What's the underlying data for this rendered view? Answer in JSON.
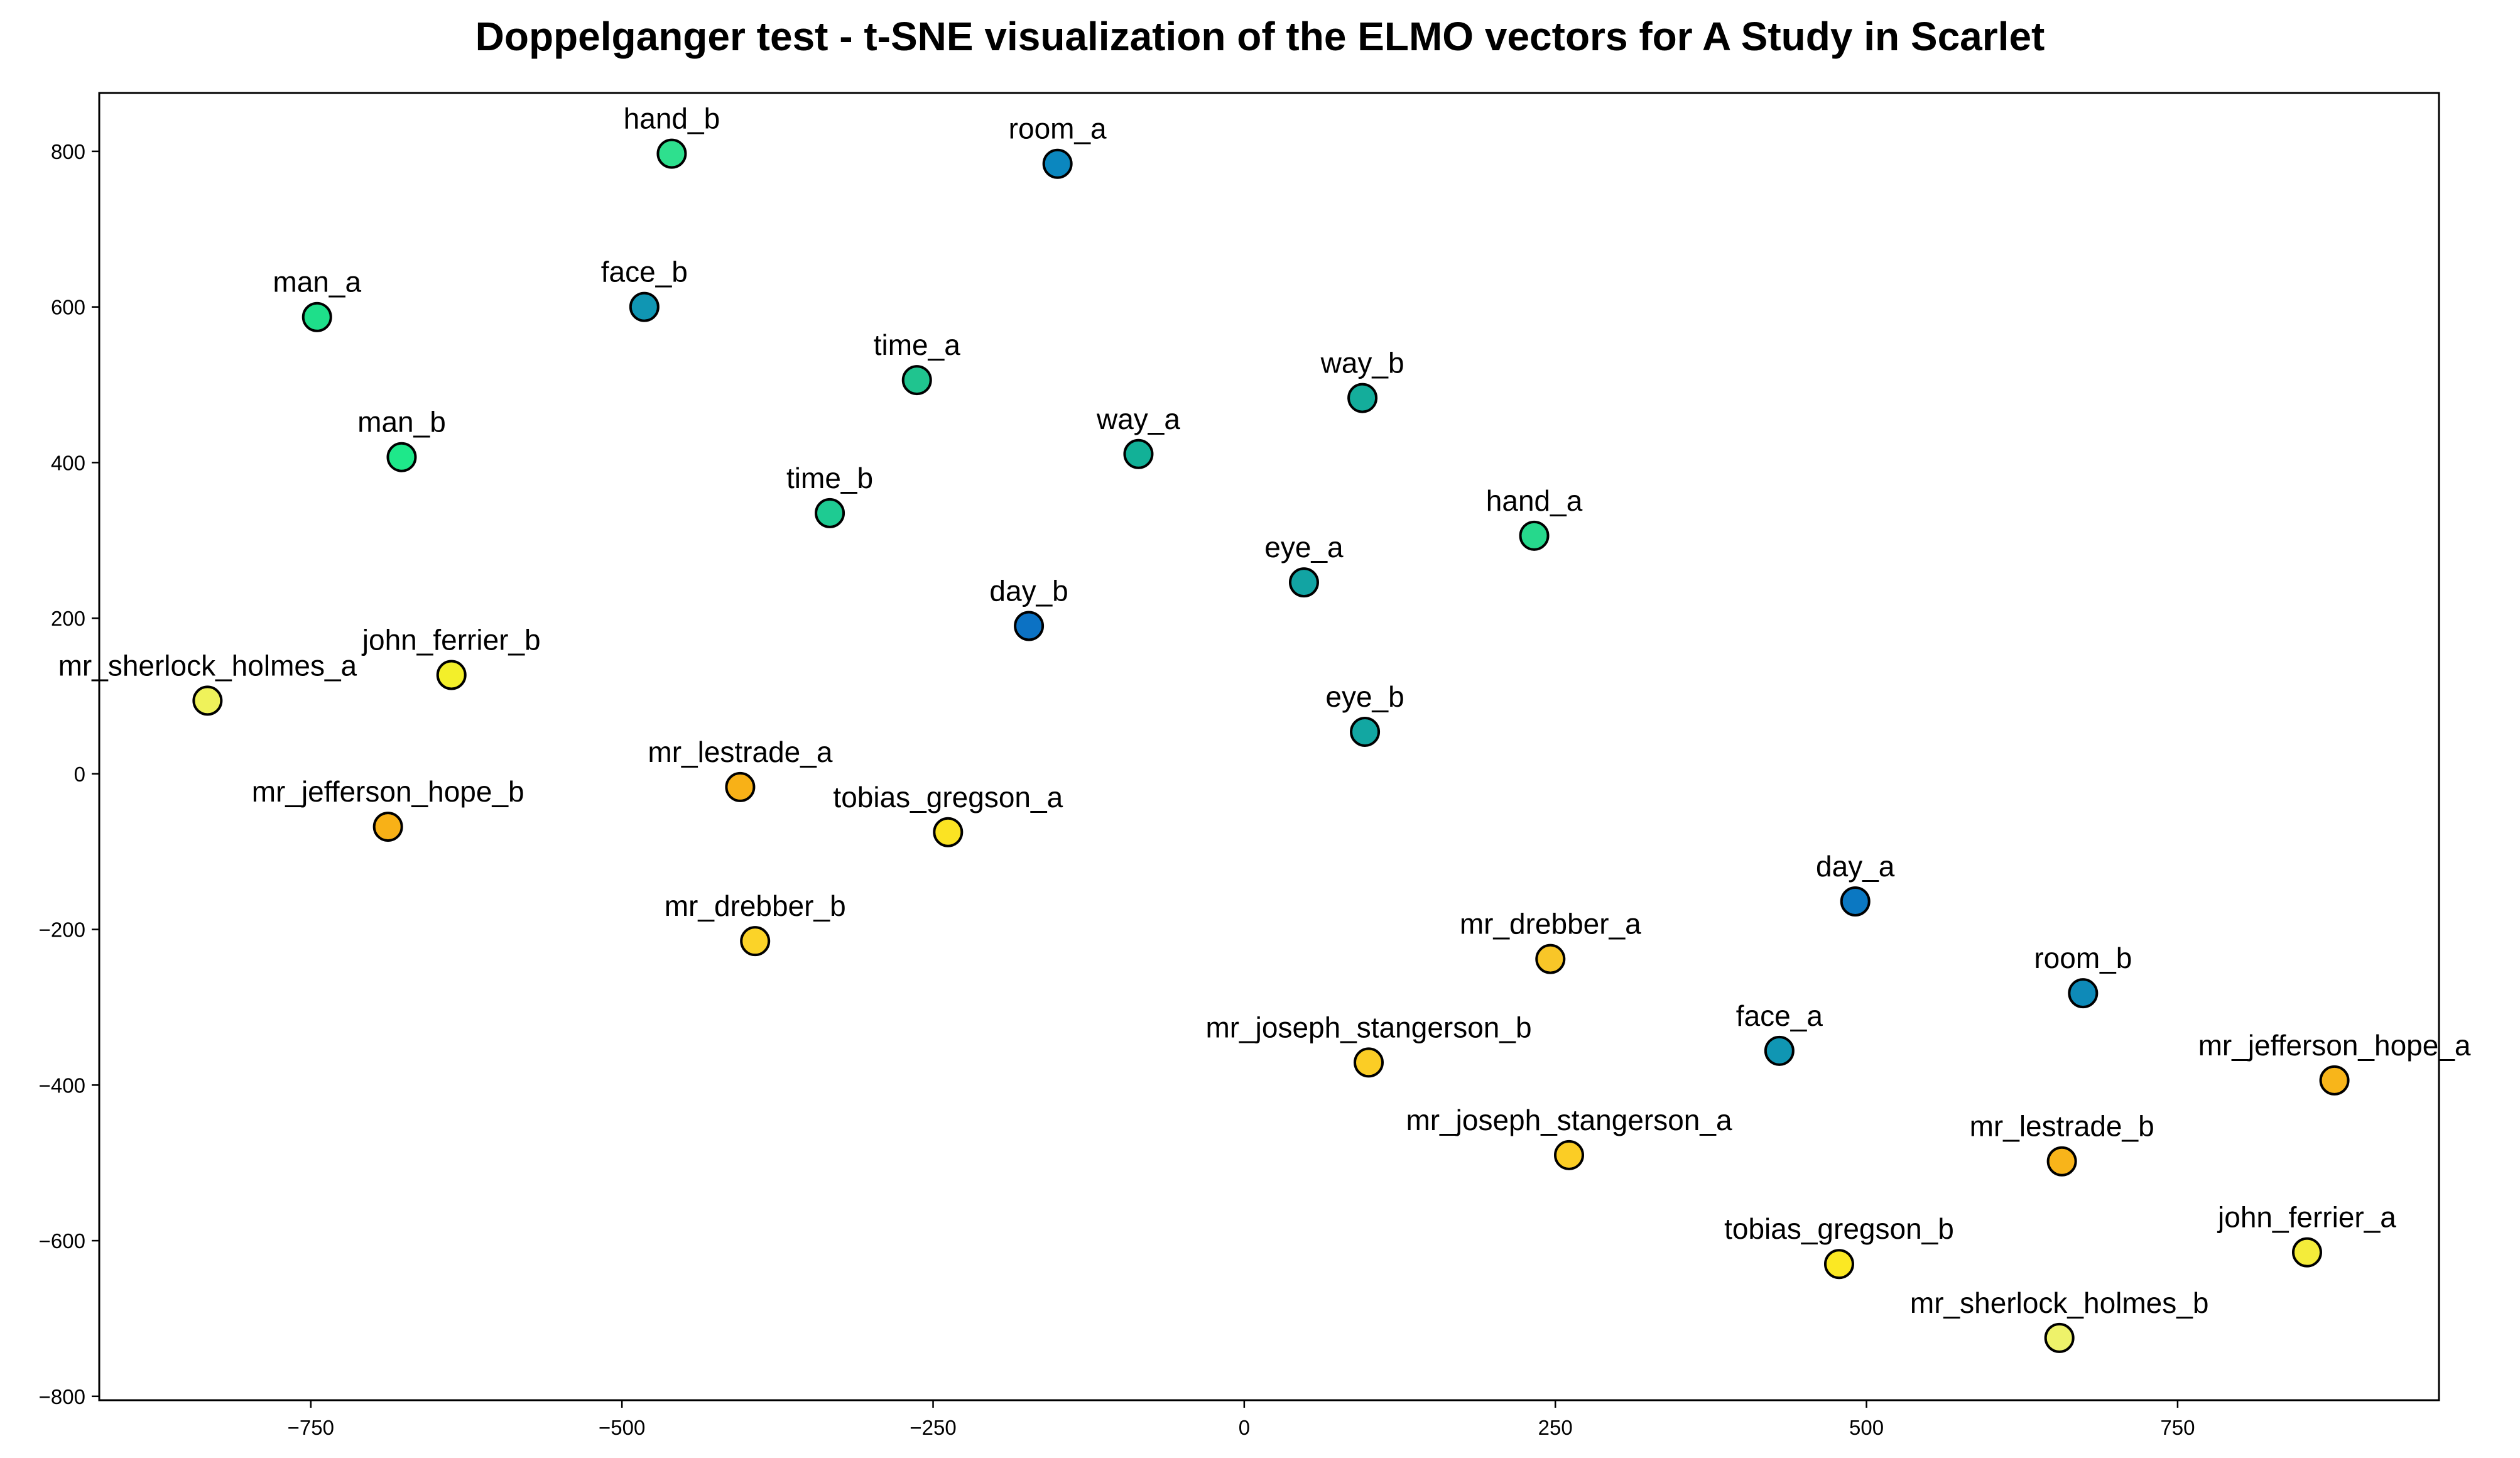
{
  "chart_data": {
    "type": "scatter",
    "title": "Doppelganger test - t-SNE visualization of the ELMO vectors for A Study in Scarlet",
    "xlabel": "",
    "ylabel": "",
    "xlim": [
      -920,
      960
    ],
    "ylim": [
      -805,
      875
    ],
    "xticks": [
      -750,
      -500,
      -250,
      0,
      250,
      500,
      750
    ],
    "yticks": [
      -800,
      -600,
      -400,
      -200,
      0,
      200,
      400,
      600,
      800
    ],
    "xtick_labels": [
      "−750",
      "−500",
      "−250",
      "0",
      "250",
      "500",
      "750"
    ],
    "ytick_labels": [
      "−800",
      "−600",
      "−400",
      "−200",
      "0",
      "200",
      "400",
      "600",
      "800"
    ],
    "grid": false,
    "legend": "none",
    "points": [
      {
        "label": "hand_b",
        "x": -460,
        "y": 797,
        "color": "#2ee08e"
      },
      {
        "label": "room_a",
        "x": -150,
        "y": 784,
        "color": "#0b87bf"
      },
      {
        "label": "man_a",
        "x": -745,
        "y": 587,
        "color": "#1edf8a"
      },
      {
        "label": "face_b",
        "x": -482,
        "y": 600,
        "color": "#1096b3"
      },
      {
        "label": "time_a",
        "x": -263,
        "y": 506,
        "color": "#20c48f"
      },
      {
        "label": "way_b",
        "x": 95,
        "y": 483,
        "color": "#14ad9b"
      },
      {
        "label": "man_b",
        "x": -677,
        "y": 407,
        "color": "#1ee88a"
      },
      {
        "label": "way_a",
        "x": -85,
        "y": 411,
        "color": "#12b197"
      },
      {
        "label": "time_b",
        "x": -333,
        "y": 335,
        "color": "#1ecb92"
      },
      {
        "label": "hand_a",
        "x": 233,
        "y": 306,
        "color": "#26d88c"
      },
      {
        "label": "eye_a",
        "x": 48,
        "y": 246,
        "color": "#12a4a3"
      },
      {
        "label": "day_b",
        "x": -173,
        "y": 190,
        "color": "#0c72c4"
      },
      {
        "label": "john_ferrier_b",
        "x": -637,
        "y": 127,
        "color": "#f3ef2a"
      },
      {
        "label": "mr_sherlock_holmes_a",
        "x": -833,
        "y": 94,
        "color": "#eff25a"
      },
      {
        "label": "eye_b",
        "x": 97,
        "y": 54,
        "color": "#12a7a2"
      },
      {
        "label": "mr_lestrade_a",
        "x": -405,
        "y": -17,
        "color": "#f8b117"
      },
      {
        "label": "mr_jefferson_hope_b",
        "x": -688,
        "y": -68,
        "color": "#f8b117"
      },
      {
        "label": "tobias_gregson_a",
        "x": -238,
        "y": -75,
        "color": "#fbe323"
      },
      {
        "label": "day_a",
        "x": 491,
        "y": -164,
        "color": "#0b78c2"
      },
      {
        "label": "mr_drebber_b",
        "x": -393,
        "y": -215,
        "color": "#fbd328"
      },
      {
        "label": "mr_drebber_a",
        "x": 246,
        "y": -238,
        "color": "#f8c628"
      },
      {
        "label": "room_b",
        "x": 674,
        "y": -282,
        "color": "#0e8ab8"
      },
      {
        "label": "face_a",
        "x": 430,
        "y": -356,
        "color": "#1096b3"
      },
      {
        "label": "mr_joseph_stangerson_b",
        "x": 100,
        "y": -371,
        "color": "#fbcd25"
      },
      {
        "label": "mr_jefferson_hope_a",
        "x": 876,
        "y": -394,
        "color": "#f8b51a"
      },
      {
        "label": "mr_joseph_stangerson_a",
        "x": 261,
        "y": -490,
        "color": "#fbcd25"
      },
      {
        "label": "mr_lestrade_b",
        "x": 657,
        "y": -498,
        "color": "#f8b41a"
      },
      {
        "label": "john_ferrier_a",
        "x": 854,
        "y": -615,
        "color": "#f4ec3a"
      },
      {
        "label": "tobias_gregson_b",
        "x": 478,
        "y": -630,
        "color": "#fbe823"
      },
      {
        "label": "mr_sherlock_holmes_b",
        "x": 655,
        "y": -725,
        "color": "#eef26a"
      }
    ]
  }
}
